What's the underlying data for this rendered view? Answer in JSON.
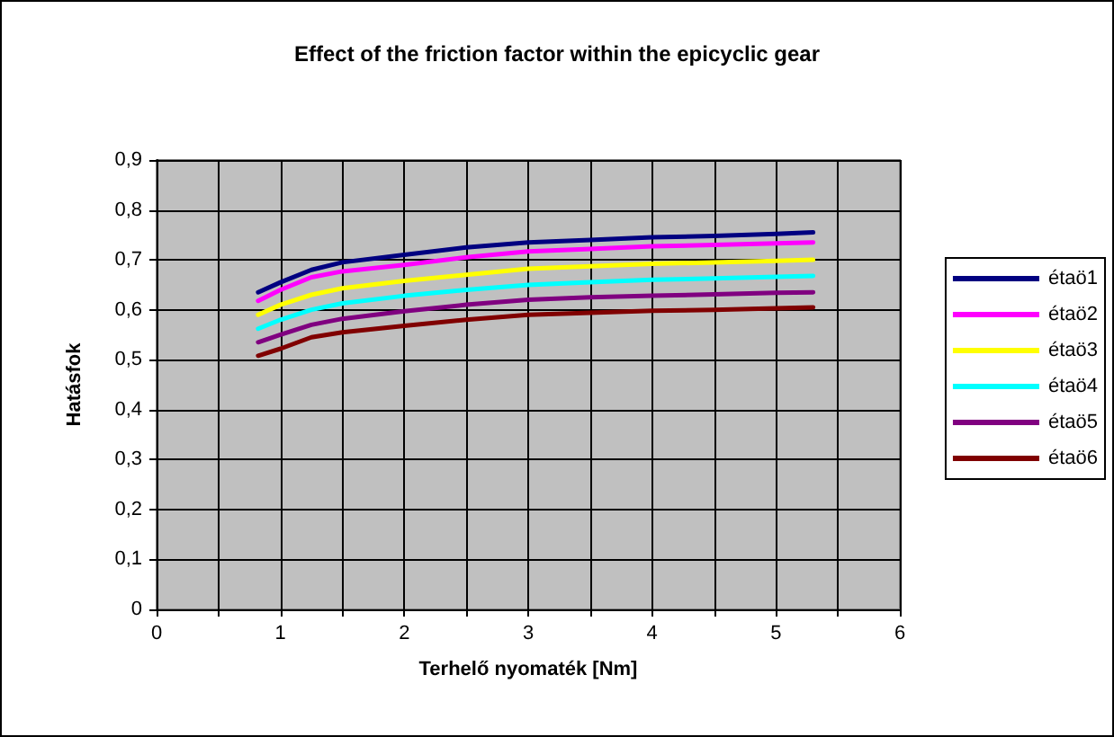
{
  "chart_data": {
    "type": "line",
    "title": "Effect of the friction factor within the epicyclic gear",
    "xlabel": "Terhelő nyomaték [Nm]",
    "ylabel": "Hatásfok",
    "x": [
      0.82,
      1.0,
      1.25,
      1.5,
      2,
      2.5,
      3,
      3.5,
      4,
      4.5,
      5,
      5.3
    ],
    "series": [
      {
        "name": "étaö1",
        "color": "#000080",
        "values": [
          0.635,
          0.655,
          0.68,
          0.695,
          0.71,
          0.725,
          0.735,
          0.74,
          0.745,
          0.748,
          0.752,
          0.755
        ]
      },
      {
        "name": "étaö2",
        "color": "#ff00ff",
        "values": [
          0.618,
          0.64,
          0.665,
          0.677,
          0.69,
          0.705,
          0.717,
          0.722,
          0.727,
          0.73,
          0.733,
          0.735
        ]
      },
      {
        "name": "étaö3",
        "color": "#ffff00",
        "values": [
          0.59,
          0.61,
          0.63,
          0.643,
          0.658,
          0.67,
          0.682,
          0.687,
          0.692,
          0.695,
          0.698,
          0.7
        ]
      },
      {
        "name": "étaö4",
        "color": "#00ffff",
        "values": [
          0.562,
          0.58,
          0.6,
          0.613,
          0.628,
          0.64,
          0.65,
          0.655,
          0.66,
          0.663,
          0.666,
          0.668
        ]
      },
      {
        "name": "étaö5",
        "color": "#800080",
        "values": [
          0.535,
          0.55,
          0.57,
          0.582,
          0.597,
          0.61,
          0.62,
          0.625,
          0.628,
          0.631,
          0.634,
          0.635
        ]
      },
      {
        "name": "étaö6",
        "color": "#800000",
        "values": [
          0.508,
          0.522,
          0.545,
          0.555,
          0.568,
          0.58,
          0.59,
          0.594,
          0.598,
          0.6,
          0.603,
          0.605
        ]
      }
    ],
    "xlim": [
      0,
      6
    ],
    "xticks": [
      0,
      {
        "value": 0.5,
        "label": null
      },
      1,
      {
        "value": 1.5,
        "label": null
      },
      2,
      {
        "value": 2.5,
        "label": null
      },
      3,
      {
        "value": 3.5,
        "label": null
      },
      4,
      {
        "value": 4.5,
        "label": null
      },
      5,
      {
        "value": 5.5,
        "label": null
      },
      6
    ],
    "ylim": [
      0,
      0.9
    ],
    "yticks": [
      0,
      {
        "value": 0.1,
        "label": "0,1"
      },
      {
        "value": 0.2,
        "label": "0,2"
      },
      {
        "value": 0.3,
        "label": "0,3"
      },
      {
        "value": 0.4,
        "label": "0,4"
      },
      {
        "value": 0.5,
        "label": "0,5"
      },
      {
        "value": 0.6,
        "label": "0,6"
      },
      {
        "value": 0.7,
        "label": "0,7"
      },
      {
        "value": 0.8,
        "label": "0,8"
      },
      {
        "value": 0.9,
        "label": "0,9"
      }
    ],
    "grid": true,
    "legend": "right",
    "marker": "none",
    "line_style": "solid"
  }
}
